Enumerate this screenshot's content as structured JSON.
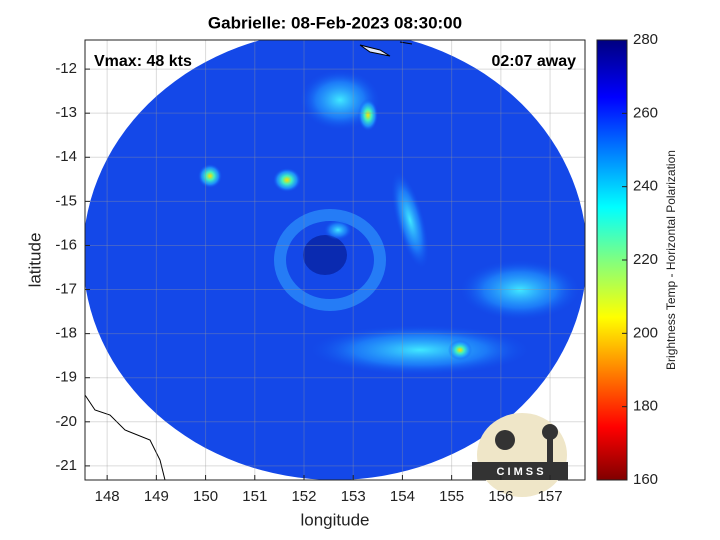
{
  "chart_data": {
    "type": "map",
    "title": "Gabrielle: 08-Feb-2023 08:30:00",
    "annotations": [
      "Vmax: 48 kts",
      "02:07 away"
    ],
    "xlabel": "longitude",
    "ylabel": "latitude",
    "xlim": [
      147.55,
      157.71
    ],
    "xticks": [
      148,
      149,
      150,
      151,
      152,
      153,
      154,
      155,
      156,
      157
    ],
    "ylim": [
      -21.32,
      -11.34
    ],
    "yticks": [
      -21,
      -20,
      -19,
      -18,
      -17,
      -16,
      -15,
      -14,
      -13,
      -12
    ],
    "grid": true,
    "colorbar": {
      "label": "Brightness Temp - Horizontal Polarization",
      "lim": [
        160,
        280
      ],
      "ticks": [
        160,
        180,
        200,
        220,
        240,
        260,
        280
      ]
    },
    "logo": "C I M S S"
  }
}
